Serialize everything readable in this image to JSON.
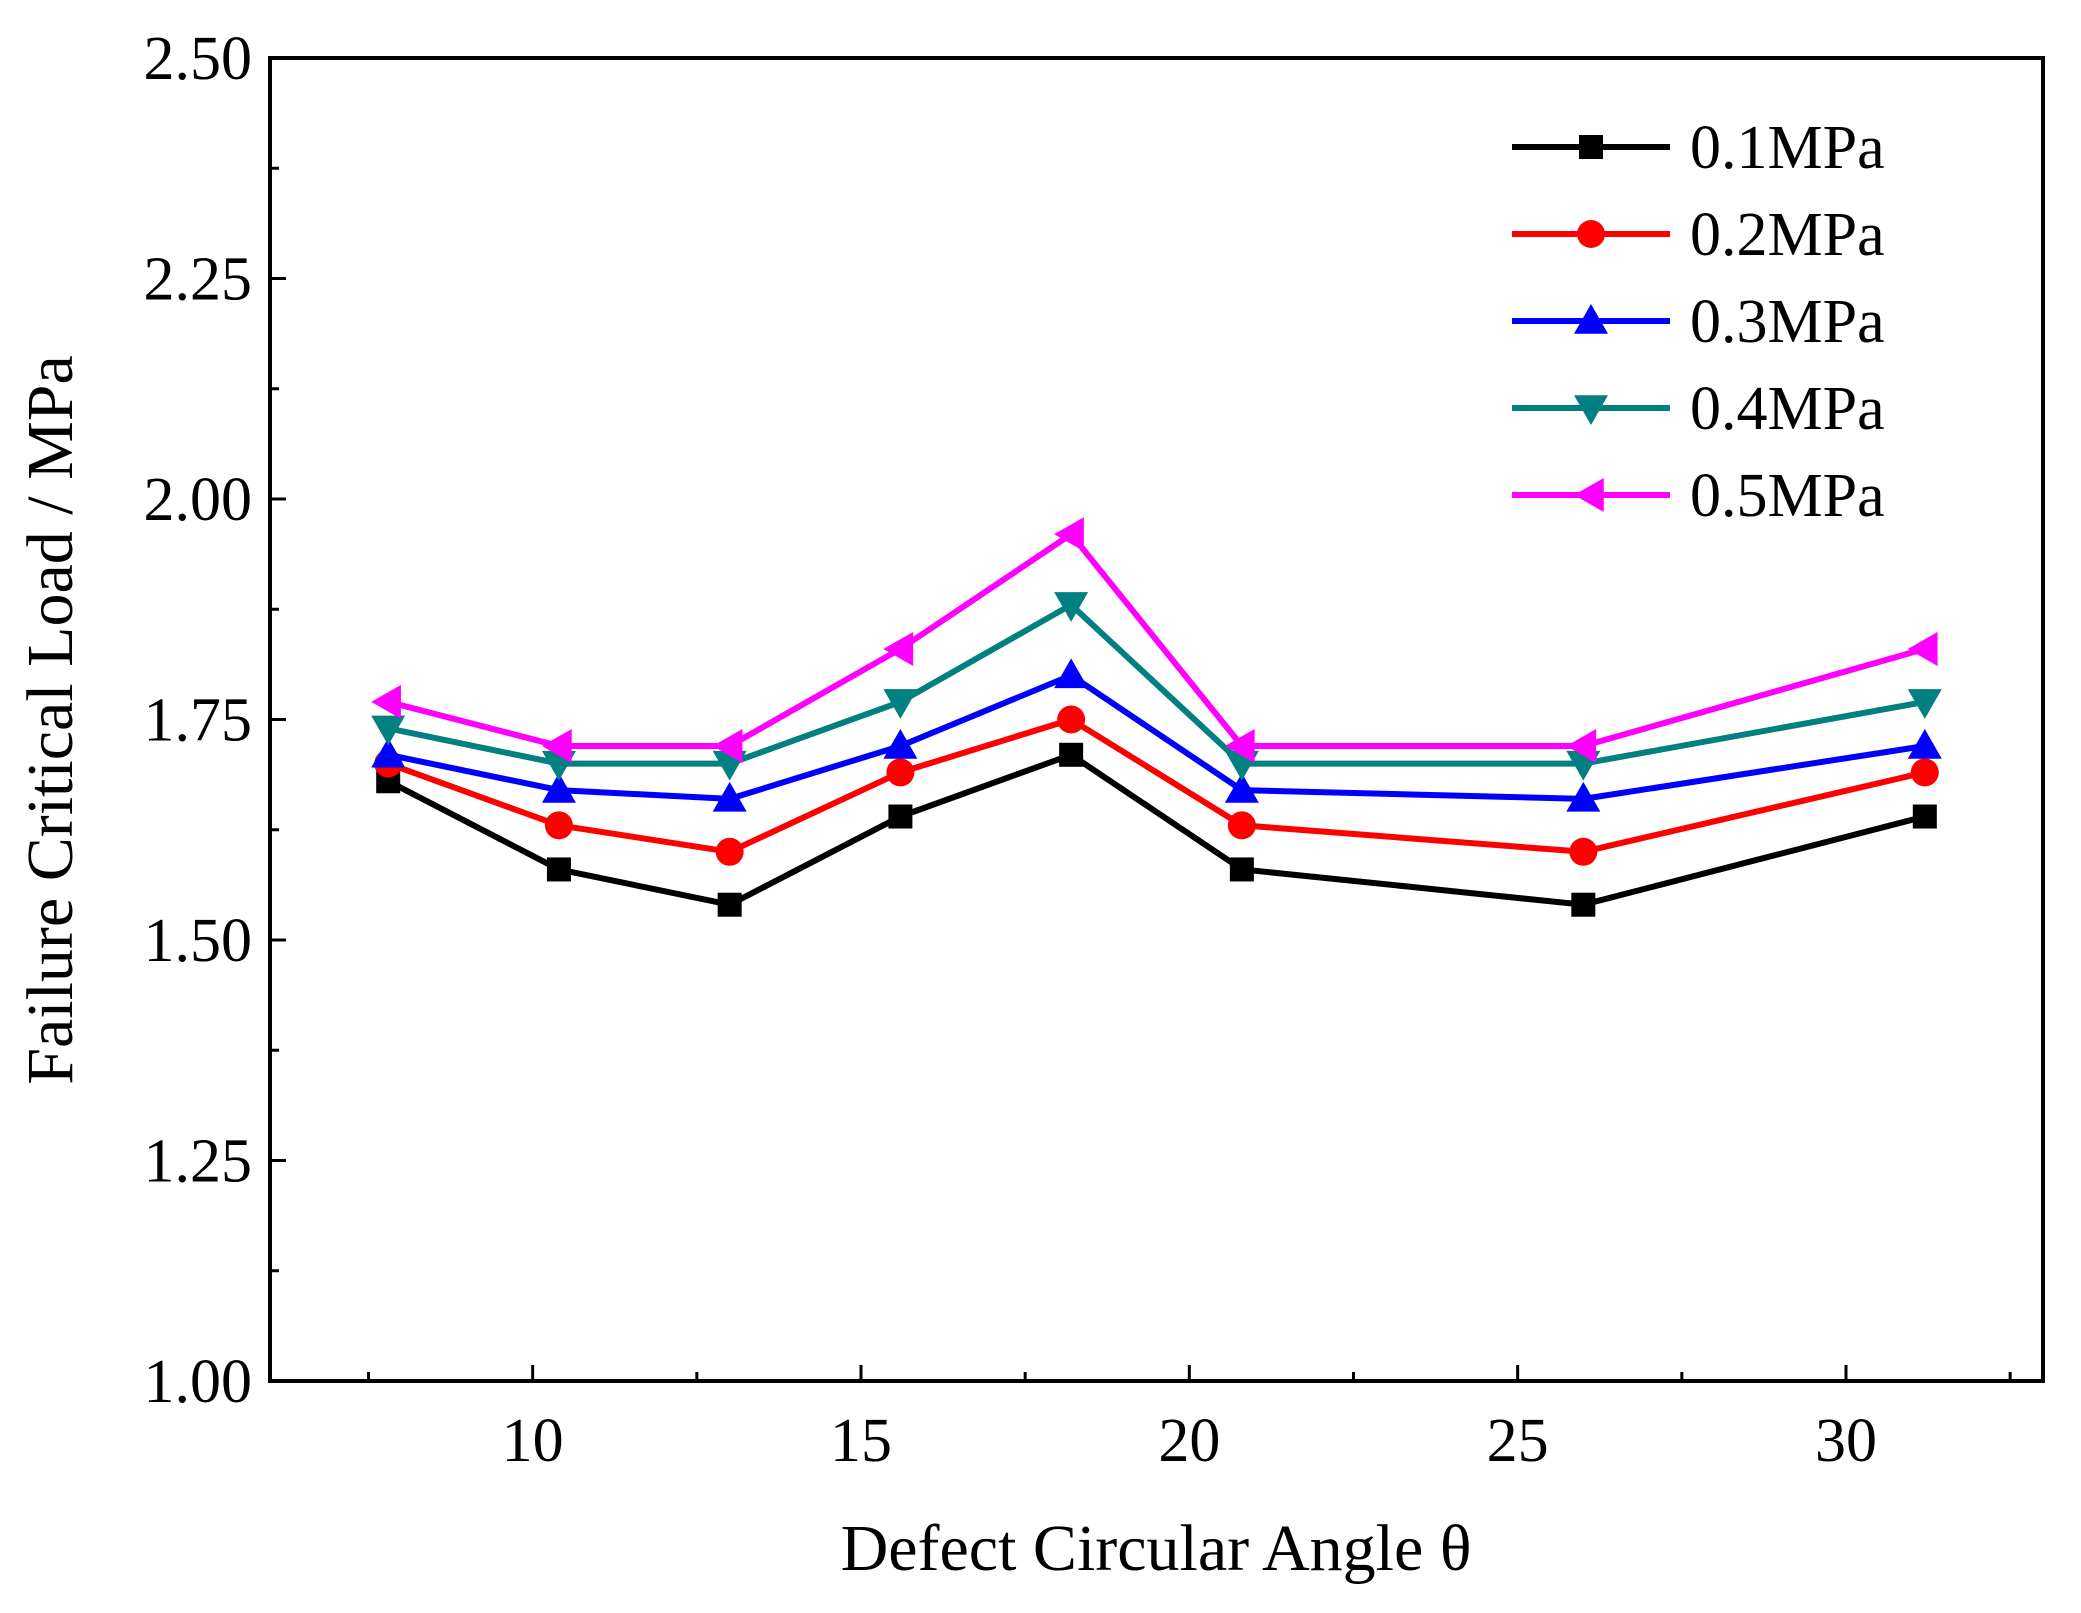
{
  "chart_data": {
    "type": "line",
    "title": "",
    "xlabel": "Defect Circular Angle θ",
    "ylabel": "Failure Critical Load / MPa",
    "xlim": [
      6,
      33
    ],
    "ylim": [
      1.0,
      2.5
    ],
    "x_ticks": [
      10,
      15,
      20,
      25,
      30
    ],
    "y_ticks": [
      1.0,
      1.25,
      1.5,
      1.75,
      2.0,
      2.25,
      2.5
    ],
    "x_tick_labels": [
      "10",
      "15",
      "20",
      "25",
      "30"
    ],
    "y_tick_labels": [
      "1.00",
      "1.25",
      "1.50",
      "1.75",
      "2.00",
      "2.25",
      "2.50"
    ],
    "grid": false,
    "legend_position": "top-right",
    "x": [
      7.8,
      10.4,
      13.0,
      15.6,
      18.2,
      20.8,
      26.0,
      31.2
    ],
    "series": [
      {
        "name": "0.1MPa",
        "color": "#000000",
        "marker": "square",
        "values": [
          1.68,
          1.58,
          1.54,
          1.64,
          1.71,
          1.58,
          1.54,
          1.64
        ]
      },
      {
        "name": "0.2MPa",
        "color": "#ff0000",
        "marker": "circle",
        "values": [
          1.7,
          1.63,
          1.6,
          1.69,
          1.75,
          1.63,
          1.6,
          1.69
        ]
      },
      {
        "name": "0.3MPa",
        "color": "#0000ff",
        "marker": "triangle-up",
        "values": [
          1.71,
          1.67,
          1.66,
          1.72,
          1.8,
          1.67,
          1.66,
          1.72
        ]
      },
      {
        "name": "0.4MPa",
        "color": "#008080",
        "marker": "triangle-down",
        "values": [
          1.74,
          1.7,
          1.7,
          1.77,
          1.88,
          1.7,
          1.7,
          1.77
        ]
      },
      {
        "name": "0.5MPa",
        "color": "#ff00ff",
        "marker": "triangle-left",
        "values": [
          1.77,
          1.72,
          1.72,
          1.83,
          1.96,
          1.72,
          1.72,
          1.83
        ]
      }
    ]
  }
}
